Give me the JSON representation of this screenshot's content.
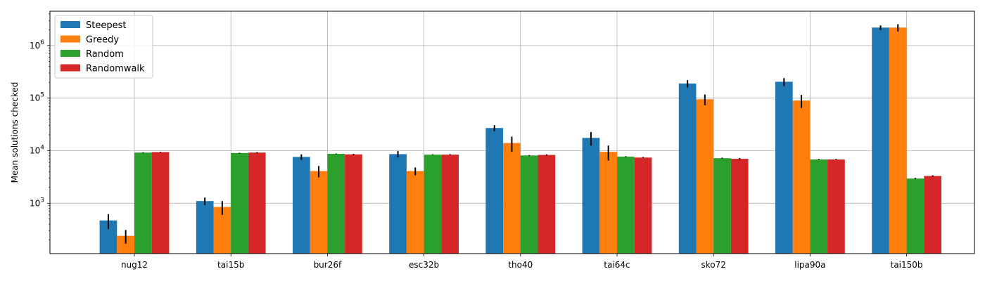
{
  "chart_data": {
    "type": "bar",
    "title": "",
    "xlabel": "",
    "ylabel": "Mean solutions checked",
    "yscale": "log",
    "ylim": [
      110,
      4500000
    ],
    "yticks": [
      {
        "value": 1000,
        "base": "10",
        "exp": "3"
      },
      {
        "value": 10000,
        "base": "10",
        "exp": "4"
      },
      {
        "value": 100000,
        "base": "10",
        "exp": "5"
      },
      {
        "value": 1000000,
        "base": "10",
        "exp": "6"
      }
    ],
    "grid": true,
    "legend_position": "top-left",
    "categories": [
      "nug12",
      "tai15b",
      "bur26f",
      "esc32b",
      "tho40",
      "tai64c",
      "sko72",
      "lipa90a",
      "tai150b"
    ],
    "series": [
      {
        "name": "Steepest",
        "color": "#1f77b4",
        "values": [
          470,
          1100,
          7600,
          8600,
          27000,
          17500,
          190000,
          205000,
          2200000
        ],
        "errors": [
          150,
          180,
          900,
          1200,
          3500,
          5000,
          30000,
          35000,
          220000
        ]
      },
      {
        "name": "Greedy",
        "color": "#ff7f0e",
        "values": [
          240,
          850,
          4100,
          4100,
          14000,
          9500,
          95000,
          90000,
          2200000
        ],
        "errors": [
          70,
          250,
          1000,
          700,
          4500,
          3000,
          22000,
          25000,
          350000
        ]
      },
      {
        "name": "Random",
        "color": "#2ca02c",
        "values": [
          9200,
          9000,
          8700,
          8400,
          8100,
          7700,
          7200,
          6800,
          2950
        ],
        "errors": [
          150,
          150,
          150,
          150,
          150,
          150,
          150,
          150,
          80
        ]
      },
      {
        "name": "Randomwalk",
        "color": "#d62728",
        "values": [
          9400,
          9200,
          8500,
          8400,
          8300,
          7400,
          7000,
          6800,
          3300
        ],
        "errors": [
          150,
          200,
          200,
          200,
          200,
          150,
          250,
          150,
          100
        ]
      }
    ]
  }
}
